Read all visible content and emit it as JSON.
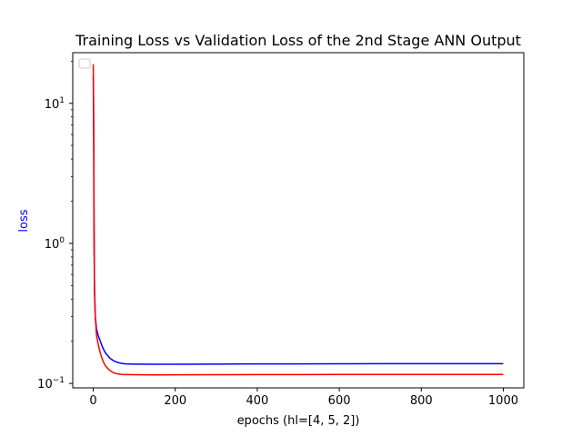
{
  "chart_data": {
    "type": "line",
    "title": "Training Loss vs Validation Loss of the 2nd Stage ANN Output",
    "xlabel": "epochs (hl=[4, 5, 2])",
    "ylabel": "loss",
    "ylabel_color": "#0000ff",
    "xlim": [
      -50,
      1050
    ],
    "ylim": [
      0.093,
      23
    ],
    "yscale": "log",
    "x_ticks": [
      {
        "value": 0,
        "label": "0"
      },
      {
        "value": 200,
        "label": "200"
      },
      {
        "value": 400,
        "label": "400"
      },
      {
        "value": 600,
        "label": "600"
      },
      {
        "value": 800,
        "label": "800"
      },
      {
        "value": 1000,
        "label": "1000"
      }
    ],
    "y_ticks": [
      {
        "value": 0.1,
        "label": "10",
        "exp": "−1"
      },
      {
        "value": 1,
        "label": "10",
        "exp": "0"
      },
      {
        "value": 10,
        "label": "10",
        "exp": "1"
      }
    ],
    "legend": {
      "placement": "upper-left",
      "entries": []
    },
    "grid": false,
    "series": [
      {
        "color": "#0000ff",
        "x": [
          0,
          1,
          2,
          3,
          5,
          8,
          12,
          16,
          20,
          25,
          30,
          40,
          50,
          60,
          70,
          80,
          100,
          150,
          200,
          300,
          400,
          500,
          600,
          700,
          800,
          900,
          1000
        ],
        "y": [
          15.5,
          6.0,
          1.0,
          0.45,
          0.3,
          0.245,
          0.22,
          0.205,
          0.19,
          0.175,
          0.165,
          0.152,
          0.145,
          0.141,
          0.139,
          0.138,
          0.1375,
          0.137,
          0.1372,
          0.1375,
          0.1378,
          0.138,
          0.1382,
          0.1383,
          0.1384,
          0.1385,
          0.1385
        ]
      },
      {
        "color": "#ff0000",
        "x": [
          0,
          1,
          2,
          3,
          5,
          8,
          12,
          16,
          20,
          25,
          30,
          40,
          50,
          60,
          70,
          80,
          100,
          150,
          200,
          300,
          400,
          500,
          600,
          700,
          800,
          900,
          1000
        ],
        "y": [
          19.0,
          9.0,
          1.5,
          0.5,
          0.3,
          0.22,
          0.19,
          0.17,
          0.155,
          0.142,
          0.133,
          0.124,
          0.119,
          0.117,
          0.116,
          0.1158,
          0.1155,
          0.115,
          0.1152,
          0.1155,
          0.1157,
          0.1158,
          0.1159,
          0.1159,
          0.116,
          0.116,
          0.116
        ]
      }
    ]
  }
}
